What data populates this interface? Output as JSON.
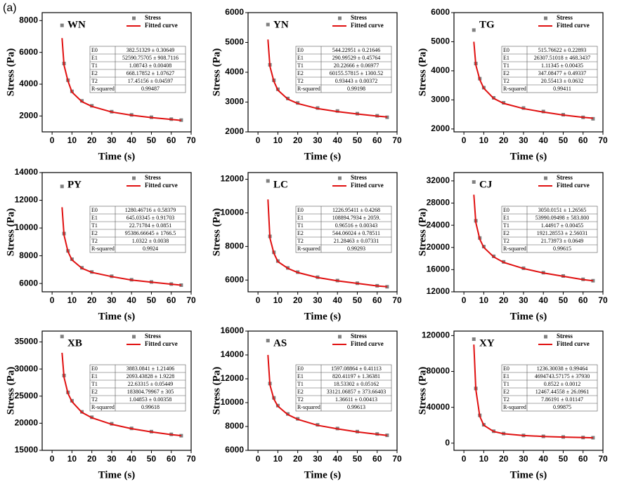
{
  "panel_label": "(a)",
  "chart_data": [
    {
      "type": "line",
      "title": "WN",
      "xlabel": "Time (s)",
      "ylabel": "Stress (Pa)",
      "x": [
        5,
        6,
        8,
        10,
        15,
        20,
        30,
        40,
        50,
        60,
        65
      ],
      "series": [
        {
          "name": "Stress",
          "color": "#808080",
          "values": [
            7700,
            5300,
            4250,
            3550,
            2950,
            2640,
            2270,
            2070,
            1920,
            1800,
            1740
          ]
        },
        {
          "name": "Fitted curve",
          "color": "#e01010",
          "values": [
            6900,
            5200,
            4200,
            3500,
            2900,
            2600,
            2250,
            2050,
            1900,
            1780,
            1720
          ]
        }
      ],
      "xlim": [
        -5,
        70
      ],
      "xticks": [
        0,
        10,
        20,
        30,
        40,
        50,
        60,
        70
      ],
      "ylim": [
        1000,
        8500
      ],
      "yticks": [
        2000,
        4000,
        6000,
        8000
      ],
      "fit_table": [
        [
          "E0",
          "382.51329 ± 0.30649"
        ],
        [
          "E1",
          "52590.75705 ± 908.7116"
        ],
        [
          "T1",
          "1.08743 ± 0.00408"
        ],
        [
          "E2",
          "668.17852 ± 1.07627"
        ],
        [
          "T2",
          "17.45156 ± 0.04597"
        ],
        [
          "R-squared",
          "0.99487"
        ]
      ]
    },
    {
      "type": "line",
      "title": "YN",
      "xlabel": "Time (s)",
      "ylabel": "Stress (Pa)",
      "x": [
        5,
        6,
        8,
        10,
        15,
        20,
        30,
        40,
        50,
        60,
        65
      ],
      "series": [
        {
          "name": "Stress",
          "color": "#808080",
          "values": [
            5600,
            4250,
            3730,
            3430,
            3120,
            2970,
            2800,
            2700,
            2610,
            2540,
            2490
          ]
        },
        {
          "name": "Fitted curve",
          "color": "#e01010",
          "values": [
            5100,
            4200,
            3700,
            3400,
            3100,
            2950,
            2780,
            2680,
            2600,
            2530,
            2500
          ]
        }
      ],
      "xlim": [
        -5,
        70
      ],
      "xticks": [
        0,
        10,
        20,
        30,
        40,
        50,
        60,
        70
      ],
      "ylim": [
        2000,
        6000
      ],
      "yticks": [
        2000,
        3000,
        4000,
        5000,
        6000
      ],
      "fit_table": [
        [
          "E0",
          "544.22951 ± 0.21646"
        ],
        [
          "E1",
          "290.99529 ± 0.45764"
        ],
        [
          "T1",
          "20.22666 ± 0.06977"
        ],
        [
          "E2",
          "60155.57815 ± 1300.52"
        ],
        [
          "T2",
          "0.93443 ± 0.00372"
        ],
        [
          "R-squared",
          "0.99198"
        ]
      ]
    },
    {
      "type": "line",
      "title": "TG",
      "xlabel": "Time (s)",
      "ylabel": "Stress (Pa)",
      "x": [
        5,
        6,
        8,
        10,
        15,
        20,
        30,
        40,
        50,
        60,
        65
      ],
      "series": [
        {
          "name": "Stress",
          "color": "#808080",
          "values": [
            5400,
            4250,
            3730,
            3420,
            3070,
            2900,
            2720,
            2600,
            2490,
            2400,
            2350
          ]
        },
        {
          "name": "Fitted curve",
          "color": "#e01010",
          "values": [
            5000,
            4200,
            3700,
            3400,
            3050,
            2880,
            2700,
            2580,
            2480,
            2400,
            2370
          ]
        }
      ],
      "xlim": [
        -5,
        70
      ],
      "xticks": [
        0,
        10,
        20,
        30,
        40,
        50,
        60,
        70
      ],
      "ylim": [
        1900,
        6000
      ],
      "yticks": [
        2000,
        3000,
        4000,
        5000,
        6000
      ],
      "fit_table": [
        [
          "E0",
          "515.76622 ± 0.22893"
        ],
        [
          "E1",
          "26307.51018 ± 468.3437"
        ],
        [
          "T1",
          "1.11345 ± 0.00435"
        ],
        [
          "E2",
          "347.08477 ± 0.49337"
        ],
        [
          "T2",
          "20.55413 ± 0.0632"
        ],
        [
          "R-squared",
          "0.99411"
        ]
      ]
    },
    {
      "type": "line",
      "title": "PY",
      "xlabel": "Time (s)",
      "ylabel": "Stress (Pa)",
      "x": [
        5,
        6,
        8,
        10,
        15,
        20,
        30,
        40,
        50,
        60,
        65
      ],
      "series": [
        {
          "name": "Stress",
          "color": "#808080",
          "values": [
            13000,
            9600,
            8350,
            7750,
            7130,
            6830,
            6520,
            6270,
            6110,
            5960,
            5880
          ]
        },
        {
          "name": "Fitted curve",
          "color": "#e01010",
          "values": [
            11500,
            9500,
            8300,
            7700,
            7100,
            6800,
            6500,
            6250,
            6100,
            5950,
            5880
          ]
        }
      ],
      "xlim": [
        -5,
        70
      ],
      "xticks": [
        0,
        10,
        20,
        30,
        40,
        50,
        60,
        70
      ],
      "ylim": [
        5400,
        14000
      ],
      "yticks": [
        6000,
        8000,
        10000,
        12000,
        14000
      ],
      "fit_table": [
        [
          "E0",
          "1280.46716 ± 0.58379"
        ],
        [
          "E1",
          "645.03345 ± 0.91703"
        ],
        [
          "T1",
          "22.71784 ± 0.0851"
        ],
        [
          "E2",
          "95386.66645 ± 1766.5"
        ],
        [
          "T2",
          "1.0322 ± 0.0038"
        ],
        [
          "R-squared",
          "0.9924"
        ]
      ]
    },
    {
      "type": "line",
      "title": "LC",
      "xlabel": "Time (s)",
      "ylabel": "Stress (Pa)",
      "x": [
        5,
        6,
        8,
        10,
        15,
        20,
        30,
        40,
        50,
        60,
        65
      ],
      "series": [
        {
          "name": "Stress",
          "color": "#808080",
          "values": [
            11900,
            8600,
            7650,
            7130,
            6720,
            6470,
            6170,
            5970,
            5810,
            5660,
            5600
          ]
        },
        {
          "name": "Fitted curve",
          "color": "#e01010",
          "values": [
            10800,
            8500,
            7600,
            7100,
            6700,
            6450,
            6150,
            5950,
            5800,
            5650,
            5600
          ]
        }
      ],
      "xlim": [
        -5,
        70
      ],
      "xticks": [
        0,
        10,
        20,
        30,
        40,
        50,
        60,
        70
      ],
      "ylim": [
        5300,
        12400
      ],
      "yticks": [
        6000,
        8000,
        10000,
        12000
      ],
      "fit_table": [
        [
          "E0",
          "1226.95411 ± 0.4268"
        ],
        [
          "E1",
          "108894.7934 ± 2059."
        ],
        [
          "T1",
          "0.96516 ± 0.00343"
        ],
        [
          "E2",
          "544.06024 ± 0.78511"
        ],
        [
          "T2",
          "21.28463 ± 0.07331"
        ],
        [
          "R-squared",
          "0.99293"
        ]
      ]
    },
    {
      "type": "line",
      "title": "CJ",
      "xlabel": "Time (s)",
      "ylabel": "Stress (Pa)",
      "x": [
        5,
        6,
        8,
        10,
        15,
        20,
        30,
        40,
        50,
        60,
        65
      ],
      "series": [
        {
          "name": "Stress",
          "color": "#808080",
          "values": [
            31800,
            24800,
            21700,
            20150,
            18400,
            17400,
            16250,
            15450,
            14850,
            14250,
            14000
          ]
        },
        {
          "name": "Fitted curve",
          "color": "#e01010",
          "values": [
            29500,
            24500,
            21500,
            20000,
            18300,
            17300,
            16200,
            15400,
            14800,
            14200,
            14000
          ]
        }
      ],
      "xlim": [
        -5,
        70
      ],
      "xticks": [
        0,
        10,
        20,
        30,
        40,
        50,
        60,
        70
      ],
      "ylim": [
        12000,
        33500
      ],
      "yticks": [
        12000,
        16000,
        20000,
        24000,
        28000,
        32000
      ],
      "fit_table": [
        [
          "E0",
          "3050.0151 ± 1.26565"
        ],
        [
          "E1",
          "53990.09498 ± 583.800"
        ],
        [
          "T1",
          "1.44917 ± 0.00455"
        ],
        [
          "E2",
          "1921.28553 ± 2.56031"
        ],
        [
          "T2",
          "21.73973 ± 0.0649"
        ],
        [
          "R-squared",
          "0.99615"
        ]
      ]
    },
    {
      "type": "line",
      "title": "XB",
      "xlabel": "Time (s)",
      "ylabel": "Stress (Pa)",
      "x": [
        5,
        6,
        8,
        10,
        15,
        20,
        30,
        40,
        50,
        60,
        65
      ],
      "series": [
        {
          "name": "Stress",
          "color": "#808080",
          "values": [
            36000,
            28800,
            25700,
            24150,
            22100,
            21100,
            19900,
            19050,
            18450,
            17950,
            17700
          ]
        },
        {
          "name": "Fitted curve",
          "color": "#e01010",
          "values": [
            33000,
            28500,
            25500,
            24000,
            22000,
            21000,
            19800,
            19000,
            18400,
            17900,
            17700
          ]
        }
      ],
      "xlim": [
        -5,
        70
      ],
      "xticks": [
        0,
        10,
        20,
        30,
        40,
        50,
        60,
        70
      ],
      "ylim": [
        15000,
        37000
      ],
      "yticks": [
        15000,
        20000,
        25000,
        30000,
        35000
      ],
      "fit_table": [
        [
          "E0",
          "3883.0841 ± 1.21406"
        ],
        [
          "E1",
          "2093.43828 ± 1.9228"
        ],
        [
          "T1",
          "22.63315 ± 0.05449"
        ],
        [
          "E2",
          "183804.79967 ± 305"
        ],
        [
          "T2",
          "1.04853 ± 0.00358"
        ],
        [
          "R-squared",
          "0.99618"
        ]
      ]
    },
    {
      "type": "line",
      "title": "AS",
      "xlabel": "Time (s)",
      "ylabel": "Stress (Pa)",
      "x": [
        5,
        6,
        8,
        10,
        15,
        20,
        30,
        40,
        50,
        60,
        65
      ],
      "series": [
        {
          "name": "Stress",
          "color": "#808080",
          "values": [
            15200,
            11600,
            10400,
            9750,
            9050,
            8640,
            8140,
            7830,
            7570,
            7370,
            7260
          ]
        },
        {
          "name": "Fitted curve",
          "color": "#e01010",
          "values": [
            14000,
            11500,
            10300,
            9700,
            9000,
            8600,
            8100,
            7800,
            7550,
            7350,
            7250
          ]
        }
      ],
      "xlim": [
        -5,
        70
      ],
      "xticks": [
        0,
        10,
        20,
        30,
        40,
        50,
        60,
        70
      ],
      "ylim": [
        6000,
        16000
      ],
      "yticks": [
        6000,
        8000,
        10000,
        12000,
        14000,
        16000
      ],
      "fit_table": [
        [
          "E0",
          "1597.08864 ± 0.41113"
        ],
        [
          "E1",
          "820.41197 ± 1.36381"
        ],
        [
          "T1",
          "18.53302 ± 0.05162"
        ],
        [
          "E2",
          "33121.06857 ± 373.66403"
        ],
        [
          "T2",
          "1.36611 ± 0.00413"
        ],
        [
          "R-squared",
          "0.99613"
        ]
      ]
    },
    {
      "type": "line",
      "title": "XY",
      "xlabel": "Time (s)",
      "ylabel": "Stress (Pa)",
      "x": [
        5,
        6,
        8,
        10,
        15,
        20,
        30,
        40,
        50,
        60,
        65
      ],
      "series": [
        {
          "name": "Stress",
          "color": "#808080",
          "values": [
            116000,
            61000,
            31000,
            20500,
            13300,
            10700,
            8600,
            7600,
            6900,
            6300,
            6050
          ]
        },
        {
          "name": "Fitted curve",
          "color": "#e01010",
          "values": [
            110000,
            60000,
            30000,
            20000,
            13000,
            10500,
            8500,
            7500,
            6800,
            6200,
            6000
          ]
        }
      ],
      "xlim": [
        -5,
        70
      ],
      "xticks": [
        0,
        10,
        20,
        30,
        40,
        50,
        60,
        70
      ],
      "ylim": [
        -8000,
        125000
      ],
      "yticks": [
        0,
        40000,
        80000,
        120000
      ],
      "fit_table": [
        [
          "E0",
          "1236.30038 ± 0.99464"
        ],
        [
          "E1",
          "4694743.57175 ± 37930"
        ],
        [
          "T1",
          "0.8522 ± 0.0012"
        ],
        [
          "E2",
          "12467.44558 ± 26.0961"
        ],
        [
          "T2",
          "7.86191 ± 0.01147"
        ],
        [
          "R-squared",
          "0.99875"
        ]
      ]
    }
  ]
}
